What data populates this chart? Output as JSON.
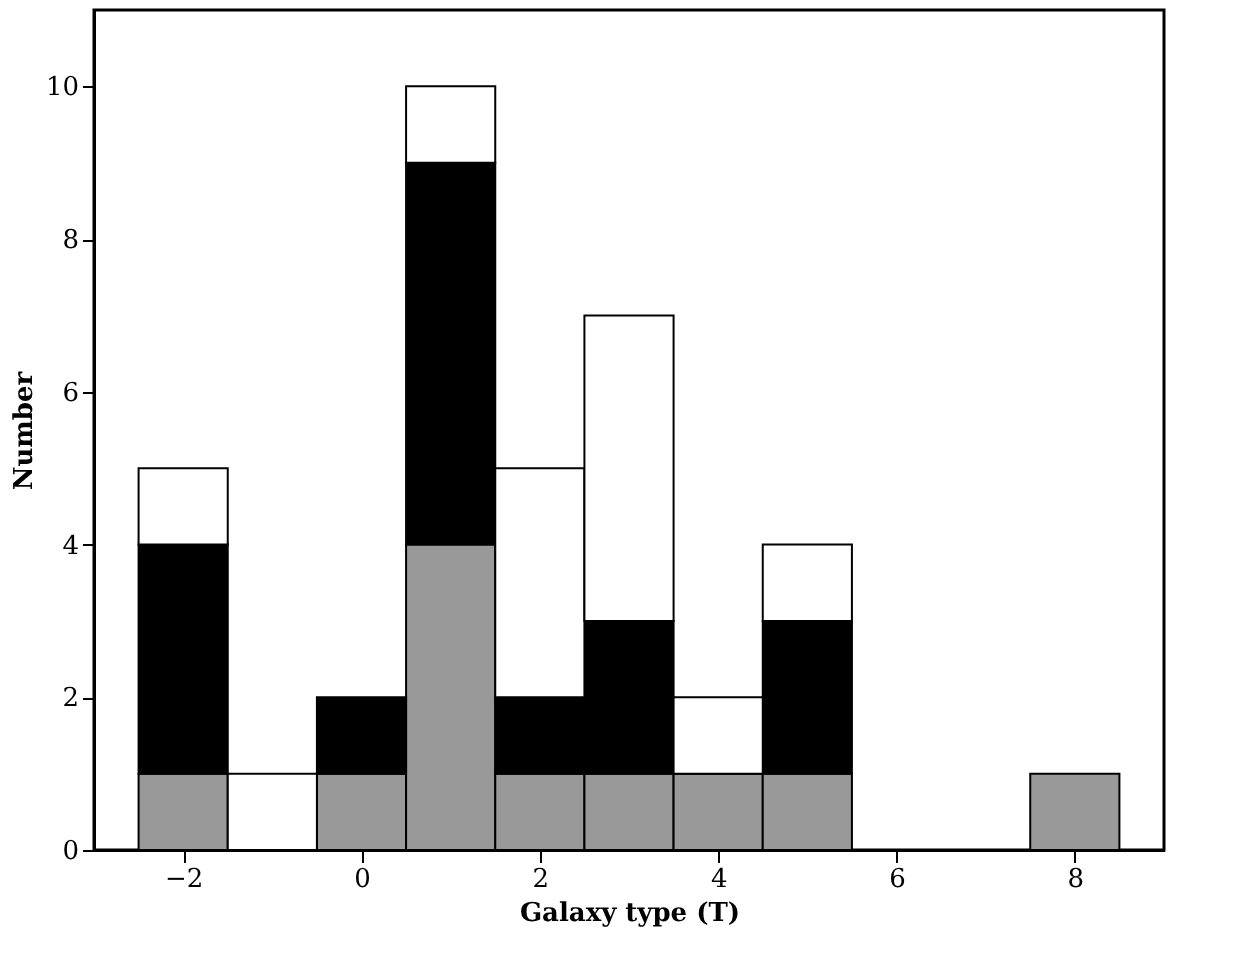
{
  "chart_data": {
    "type": "bar",
    "xlabel": "Galaxy type (T)",
    "ylabel": "Number",
    "x": [
      -2,
      -1,
      0,
      1,
      2,
      3,
      4,
      5,
      6,
      7,
      8
    ],
    "stacked": true,
    "series": [
      {
        "color": "#999999",
        "values": [
          1,
          0,
          1,
          4,
          1,
          1,
          1,
          1,
          0,
          0,
          1
        ]
      },
      {
        "color": "#000000",
        "values": [
          3,
          0,
          1,
          5,
          1,
          2,
          0,
          2,
          0,
          0,
          0
        ]
      },
      {
        "color": "#ffffff",
        "values": [
          1,
          1,
          0,
          1,
          3,
          4,
          1,
          1,
          0,
          0,
          0
        ]
      }
    ],
    "xlim": [
      -3,
      9
    ],
    "ylim": [
      0,
      11
    ],
    "xticks": [
      -2,
      0,
      2,
      4,
      6,
      8
    ],
    "yticks": [
      0,
      2,
      4,
      6,
      8,
      10
    ],
    "grid": false,
    "legend": false
  }
}
